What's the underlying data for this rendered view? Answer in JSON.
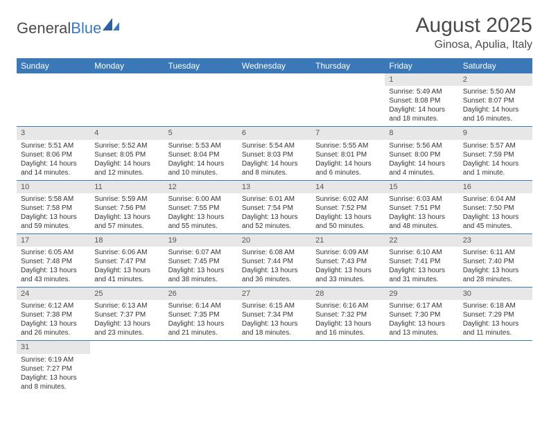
{
  "logo": {
    "text1": "General",
    "text2": "Blue"
  },
  "title": "August 2025",
  "location": "Ginosa, Apulia, Italy",
  "colors": {
    "header_bg": "#3b78b8",
    "header_text": "#ffffff",
    "daynum_bg": "#e7e7e7",
    "border": "#3b78b8"
  },
  "weekdays": [
    "Sunday",
    "Monday",
    "Tuesday",
    "Wednesday",
    "Thursday",
    "Friday",
    "Saturday"
  ],
  "weeks": [
    [
      null,
      null,
      null,
      null,
      null,
      {
        "d": "1",
        "sr": "Sunrise: 5:49 AM",
        "ss": "Sunset: 8:08 PM",
        "dl1": "Daylight: 14 hours",
        "dl2": "and 18 minutes."
      },
      {
        "d": "2",
        "sr": "Sunrise: 5:50 AM",
        "ss": "Sunset: 8:07 PM",
        "dl1": "Daylight: 14 hours",
        "dl2": "and 16 minutes."
      }
    ],
    [
      {
        "d": "3",
        "sr": "Sunrise: 5:51 AM",
        "ss": "Sunset: 8:06 PM",
        "dl1": "Daylight: 14 hours",
        "dl2": "and 14 minutes."
      },
      {
        "d": "4",
        "sr": "Sunrise: 5:52 AM",
        "ss": "Sunset: 8:05 PM",
        "dl1": "Daylight: 14 hours",
        "dl2": "and 12 minutes."
      },
      {
        "d": "5",
        "sr": "Sunrise: 5:53 AM",
        "ss": "Sunset: 8:04 PM",
        "dl1": "Daylight: 14 hours",
        "dl2": "and 10 minutes."
      },
      {
        "d": "6",
        "sr": "Sunrise: 5:54 AM",
        "ss": "Sunset: 8:03 PM",
        "dl1": "Daylight: 14 hours",
        "dl2": "and 8 minutes."
      },
      {
        "d": "7",
        "sr": "Sunrise: 5:55 AM",
        "ss": "Sunset: 8:01 PM",
        "dl1": "Daylight: 14 hours",
        "dl2": "and 6 minutes."
      },
      {
        "d": "8",
        "sr": "Sunrise: 5:56 AM",
        "ss": "Sunset: 8:00 PM",
        "dl1": "Daylight: 14 hours",
        "dl2": "and 4 minutes."
      },
      {
        "d": "9",
        "sr": "Sunrise: 5:57 AM",
        "ss": "Sunset: 7:59 PM",
        "dl1": "Daylight: 14 hours",
        "dl2": "and 1 minute."
      }
    ],
    [
      {
        "d": "10",
        "sr": "Sunrise: 5:58 AM",
        "ss": "Sunset: 7:58 PM",
        "dl1": "Daylight: 13 hours",
        "dl2": "and 59 minutes."
      },
      {
        "d": "11",
        "sr": "Sunrise: 5:59 AM",
        "ss": "Sunset: 7:56 PM",
        "dl1": "Daylight: 13 hours",
        "dl2": "and 57 minutes."
      },
      {
        "d": "12",
        "sr": "Sunrise: 6:00 AM",
        "ss": "Sunset: 7:55 PM",
        "dl1": "Daylight: 13 hours",
        "dl2": "and 55 minutes."
      },
      {
        "d": "13",
        "sr": "Sunrise: 6:01 AM",
        "ss": "Sunset: 7:54 PM",
        "dl1": "Daylight: 13 hours",
        "dl2": "and 52 minutes."
      },
      {
        "d": "14",
        "sr": "Sunrise: 6:02 AM",
        "ss": "Sunset: 7:52 PM",
        "dl1": "Daylight: 13 hours",
        "dl2": "and 50 minutes."
      },
      {
        "d": "15",
        "sr": "Sunrise: 6:03 AM",
        "ss": "Sunset: 7:51 PM",
        "dl1": "Daylight: 13 hours",
        "dl2": "and 48 minutes."
      },
      {
        "d": "16",
        "sr": "Sunrise: 6:04 AM",
        "ss": "Sunset: 7:50 PM",
        "dl1": "Daylight: 13 hours",
        "dl2": "and 45 minutes."
      }
    ],
    [
      {
        "d": "17",
        "sr": "Sunrise: 6:05 AM",
        "ss": "Sunset: 7:48 PM",
        "dl1": "Daylight: 13 hours",
        "dl2": "and 43 minutes."
      },
      {
        "d": "18",
        "sr": "Sunrise: 6:06 AM",
        "ss": "Sunset: 7:47 PM",
        "dl1": "Daylight: 13 hours",
        "dl2": "and 41 minutes."
      },
      {
        "d": "19",
        "sr": "Sunrise: 6:07 AM",
        "ss": "Sunset: 7:45 PM",
        "dl1": "Daylight: 13 hours",
        "dl2": "and 38 minutes."
      },
      {
        "d": "20",
        "sr": "Sunrise: 6:08 AM",
        "ss": "Sunset: 7:44 PM",
        "dl1": "Daylight: 13 hours",
        "dl2": "and 36 minutes."
      },
      {
        "d": "21",
        "sr": "Sunrise: 6:09 AM",
        "ss": "Sunset: 7:43 PM",
        "dl1": "Daylight: 13 hours",
        "dl2": "and 33 minutes."
      },
      {
        "d": "22",
        "sr": "Sunrise: 6:10 AM",
        "ss": "Sunset: 7:41 PM",
        "dl1": "Daylight: 13 hours",
        "dl2": "and 31 minutes."
      },
      {
        "d": "23",
        "sr": "Sunrise: 6:11 AM",
        "ss": "Sunset: 7:40 PM",
        "dl1": "Daylight: 13 hours",
        "dl2": "and 28 minutes."
      }
    ],
    [
      {
        "d": "24",
        "sr": "Sunrise: 6:12 AM",
        "ss": "Sunset: 7:38 PM",
        "dl1": "Daylight: 13 hours",
        "dl2": "and 26 minutes."
      },
      {
        "d": "25",
        "sr": "Sunrise: 6:13 AM",
        "ss": "Sunset: 7:37 PM",
        "dl1": "Daylight: 13 hours",
        "dl2": "and 23 minutes."
      },
      {
        "d": "26",
        "sr": "Sunrise: 6:14 AM",
        "ss": "Sunset: 7:35 PM",
        "dl1": "Daylight: 13 hours",
        "dl2": "and 21 minutes."
      },
      {
        "d": "27",
        "sr": "Sunrise: 6:15 AM",
        "ss": "Sunset: 7:34 PM",
        "dl1": "Daylight: 13 hours",
        "dl2": "and 18 minutes."
      },
      {
        "d": "28",
        "sr": "Sunrise: 6:16 AM",
        "ss": "Sunset: 7:32 PM",
        "dl1": "Daylight: 13 hours",
        "dl2": "and 16 minutes."
      },
      {
        "d": "29",
        "sr": "Sunrise: 6:17 AM",
        "ss": "Sunset: 7:30 PM",
        "dl1": "Daylight: 13 hours",
        "dl2": "and 13 minutes."
      },
      {
        "d": "30",
        "sr": "Sunrise: 6:18 AM",
        "ss": "Sunset: 7:29 PM",
        "dl1": "Daylight: 13 hours",
        "dl2": "and 11 minutes."
      }
    ],
    [
      {
        "d": "31",
        "sr": "Sunrise: 6:19 AM",
        "ss": "Sunset: 7:27 PM",
        "dl1": "Daylight: 13 hours",
        "dl2": "and 8 minutes."
      },
      null,
      null,
      null,
      null,
      null,
      null
    ]
  ]
}
